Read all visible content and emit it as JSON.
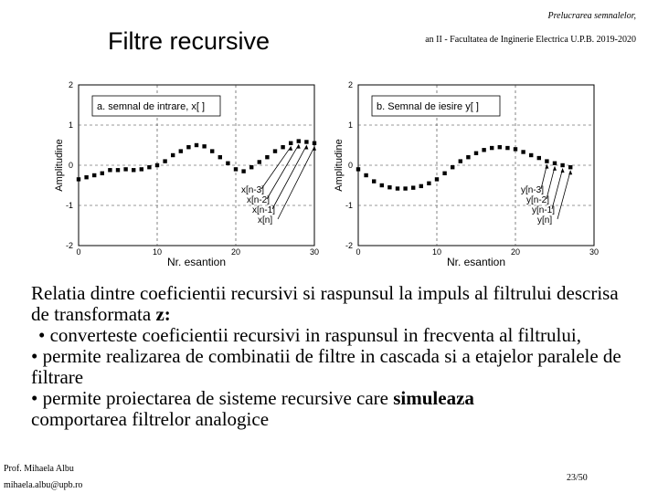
{
  "header": {
    "title": "Filtre recursive",
    "course": "Prelucrarea semnalelor,",
    "faculty": "an II - Facultatea de Inginerie Electrica U.P.B. 2019-2020"
  },
  "chart_data": [
    {
      "type": "scatter",
      "legend": "a.   semnal de intrare, x[ ]",
      "xlabel": "Nr. esantion",
      "ylabel": "Amplitudine",
      "xlim": [
        0,
        30
      ],
      "ylim": [
        -2,
        2
      ],
      "xticks": [
        "0",
        "10",
        "20",
        "30"
      ],
      "yticks": [
        "2",
        "1",
        "0",
        "-1",
        "-2"
      ],
      "x": [
        0,
        1,
        2,
        3,
        4,
        5,
        6,
        7,
        8,
        9,
        10,
        11,
        12,
        13,
        14,
        15,
        16,
        17,
        18,
        19,
        20,
        21,
        22,
        23,
        24,
        25,
        26,
        27,
        28,
        29,
        30
      ],
      "y": [
        -0.35,
        -0.3,
        -0.25,
        -0.2,
        -0.12,
        -0.12,
        -0.1,
        -0.12,
        -0.1,
        -0.05,
        0.0,
        0.1,
        0.25,
        0.35,
        0.45,
        0.5,
        0.47,
        0.35,
        0.2,
        0.05,
        -0.1,
        -0.15,
        -0.05,
        0.08,
        0.2,
        0.35,
        0.45,
        0.55,
        0.6,
        0.58,
        0.55
      ],
      "annotations": [
        "x[n-3]",
        "x[n-2]",
        "x[n-1]",
        "x[n]"
      ]
    },
    {
      "type": "scatter",
      "legend": "b.  Semnal de iesire y[ ]",
      "xlabel": "Nr. esantion",
      "ylabel": "Amplitudine",
      "xlim": [
        0,
        30
      ],
      "ylim": [
        -2,
        2
      ],
      "xticks": [
        "0",
        "10",
        "20",
        "30"
      ],
      "yticks": [
        "2",
        "1",
        "0",
        "-1",
        "-2"
      ],
      "x": [
        0,
        1,
        2,
        3,
        4,
        5,
        6,
        7,
        8,
        9,
        10,
        11,
        12,
        13,
        14,
        15,
        16,
        17,
        18,
        19,
        20,
        21,
        22,
        23,
        24,
        25,
        26,
        27
      ],
      "y": [
        -0.1,
        -0.25,
        -0.4,
        -0.5,
        -0.55,
        -0.58,
        -0.58,
        -0.56,
        -0.52,
        -0.45,
        -0.35,
        -0.2,
        -0.05,
        0.1,
        0.2,
        0.3,
        0.38,
        0.43,
        0.45,
        0.43,
        0.4,
        0.33,
        0.25,
        0.18,
        0.1,
        0.05,
        0.0,
        -0.05
      ],
      "annotations": [
        "y[n-3]",
        "y[n-2]",
        "y[n-1]",
        "y[n]"
      ]
    }
  ],
  "body": {
    "intro": "Relatia dintre coeficientii recursivi si raspunsul la impuls al filtrului descrisa de transformata ",
    "intro_bold": "z:",
    "bullet1": "• converteste coeficientii recursivi in raspunsul in frecventa al filtrului,",
    "bullet2": "• permite realizarea de combinatii de filtre in cascada si a etajelor paralele de filtrare",
    "bullet3_pre": "• permite proiectarea de sisteme recursive care ",
    "bullet3_bold": "simuleaza",
    "bullet3_post": "comportarea filtrelor analogice"
  },
  "footer": {
    "author": "Prof. Mihaela Albu",
    "email": "mihaela.albu@upb.ro",
    "page": "23/50"
  }
}
